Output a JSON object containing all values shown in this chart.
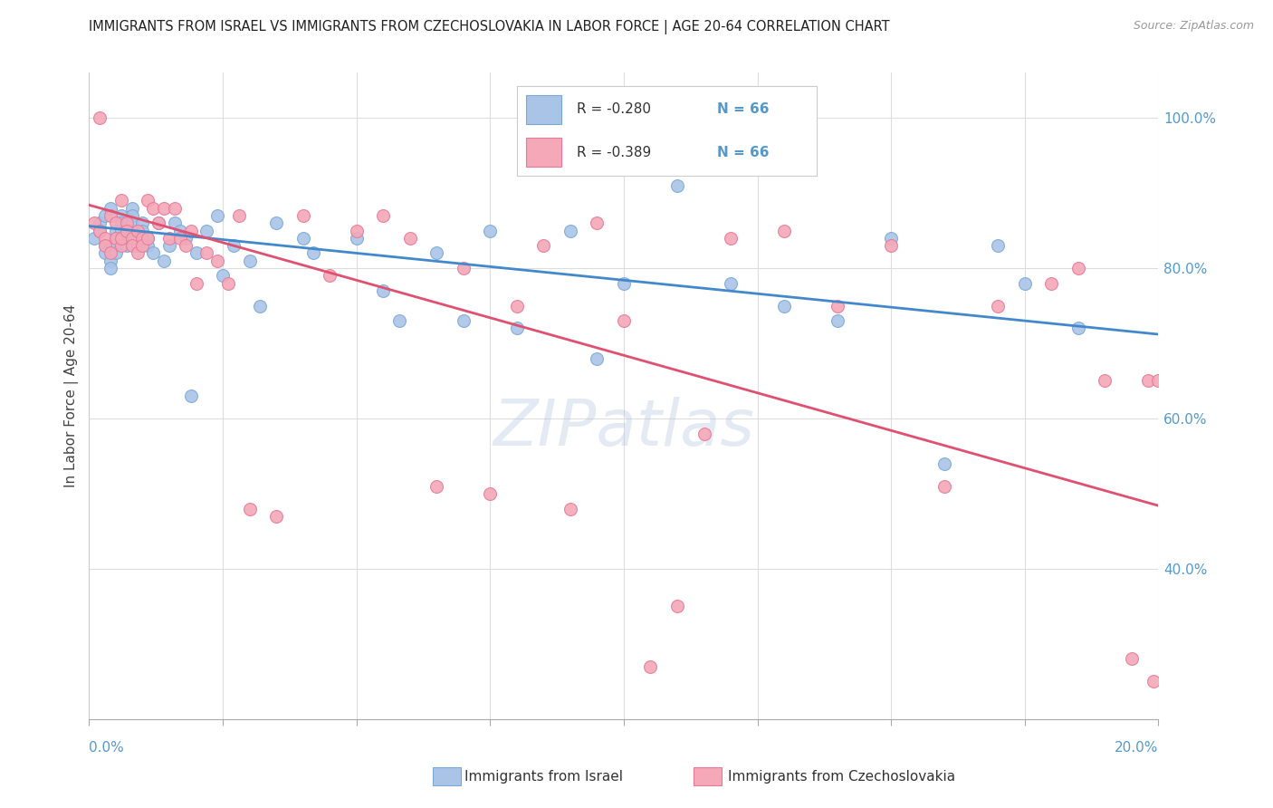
{
  "title": "IMMIGRANTS FROM ISRAEL VS IMMIGRANTS FROM CZECHOSLOVAKIA IN LABOR FORCE | AGE 20-64 CORRELATION CHART",
  "source": "Source: ZipAtlas.com",
  "ylabel": "In Labor Force | Age 20-64",
  "right_yticks": [
    0.4,
    0.6,
    0.8,
    1.0
  ],
  "right_yticklabels": [
    "40.0%",
    "60.0%",
    "80.0%",
    "100.0%"
  ],
  "xlim": [
    0.0,
    0.2
  ],
  "ylim": [
    0.2,
    1.06
  ],
  "legend_blue_R": "R = -0.280",
  "legend_blue_N": "N = 66",
  "legend_pink_R": "R = -0.389",
  "legend_pink_N": "N = 66",
  "watermark": "ZIPatlas",
  "blue_color": "#aac4e8",
  "pink_color": "#f4a8b8",
  "blue_edge": "#7aaad4",
  "pink_edge": "#e87a96",
  "trendline_blue": "#4488cc",
  "trendline_pink": "#e05070",
  "blue_scatter_x": [
    0.001,
    0.002,
    0.002,
    0.003,
    0.003,
    0.003,
    0.004,
    0.004,
    0.004,
    0.005,
    0.005,
    0.005,
    0.005,
    0.006,
    0.006,
    0.006,
    0.006,
    0.007,
    0.007,
    0.007,
    0.008,
    0.008,
    0.008,
    0.009,
    0.009,
    0.01,
    0.01,
    0.011,
    0.011,
    0.012,
    0.013,
    0.014,
    0.015,
    0.016,
    0.017,
    0.018,
    0.019,
    0.02,
    0.022,
    0.024,
    0.025,
    0.027,
    0.03,
    0.032,
    0.035,
    0.04,
    0.042,
    0.05,
    0.055,
    0.058,
    0.065,
    0.07,
    0.075,
    0.08,
    0.09,
    0.095,
    0.1,
    0.11,
    0.12,
    0.13,
    0.14,
    0.15,
    0.16,
    0.17,
    0.175,
    0.185
  ],
  "blue_scatter_y": [
    0.84,
    0.86,
    0.85,
    0.83,
    0.87,
    0.82,
    0.81,
    0.88,
    0.8,
    0.85,
    0.84,
    0.83,
    0.82,
    0.87,
    0.86,
    0.85,
    0.84,
    0.85,
    0.84,
    0.83,
    0.88,
    0.87,
    0.86,
    0.85,
    0.83,
    0.86,
    0.85,
    0.84,
    0.83,
    0.82,
    0.86,
    0.81,
    0.83,
    0.86,
    0.85,
    0.84,
    0.63,
    0.82,
    0.85,
    0.87,
    0.79,
    0.83,
    0.81,
    0.75,
    0.86,
    0.84,
    0.82,
    0.84,
    0.77,
    0.73,
    0.82,
    0.73,
    0.85,
    0.72,
    0.85,
    0.68,
    0.78,
    0.91,
    0.78,
    0.75,
    0.73,
    0.84,
    0.54,
    0.83,
    0.78,
    0.72
  ],
  "pink_scatter_x": [
    0.001,
    0.002,
    0.002,
    0.003,
    0.003,
    0.004,
    0.004,
    0.005,
    0.005,
    0.006,
    0.006,
    0.006,
    0.007,
    0.007,
    0.008,
    0.008,
    0.009,
    0.009,
    0.01,
    0.01,
    0.011,
    0.011,
    0.012,
    0.013,
    0.014,
    0.015,
    0.016,
    0.017,
    0.018,
    0.019,
    0.02,
    0.022,
    0.024,
    0.026,
    0.028,
    0.03,
    0.035,
    0.04,
    0.045,
    0.05,
    0.055,
    0.06,
    0.065,
    0.07,
    0.075,
    0.08,
    0.085,
    0.09,
    0.095,
    0.1,
    0.105,
    0.11,
    0.115,
    0.12,
    0.13,
    0.14,
    0.15,
    0.16,
    0.17,
    0.18,
    0.185,
    0.19,
    0.195,
    0.198,
    0.199,
    0.2
  ],
  "pink_scatter_y": [
    0.86,
    0.85,
    1.0,
    0.84,
    0.83,
    0.87,
    0.82,
    0.86,
    0.84,
    0.83,
    0.89,
    0.84,
    0.86,
    0.85,
    0.84,
    0.83,
    0.85,
    0.82,
    0.84,
    0.83,
    0.89,
    0.84,
    0.88,
    0.86,
    0.88,
    0.84,
    0.88,
    0.84,
    0.83,
    0.85,
    0.78,
    0.82,
    0.81,
    0.78,
    0.87,
    0.48,
    0.47,
    0.87,
    0.79,
    0.85,
    0.87,
    0.84,
    0.51,
    0.8,
    0.5,
    0.75,
    0.83,
    0.48,
    0.86,
    0.73,
    0.27,
    0.35,
    0.58,
    0.84,
    0.85,
    0.75,
    0.83,
    0.51,
    0.75,
    0.78,
    0.8,
    0.65,
    0.28,
    0.65,
    0.25,
    0.65
  ],
  "blue_trend_x": [
    0.0,
    0.2
  ],
  "blue_trend_y": [
    0.856,
    0.712
  ],
  "pink_trend_x": [
    0.0,
    0.2
  ],
  "pink_trend_y": [
    0.884,
    0.484
  ],
  "background_color": "#ffffff",
  "grid_color": "#dddddd",
  "marker_size": 100
}
